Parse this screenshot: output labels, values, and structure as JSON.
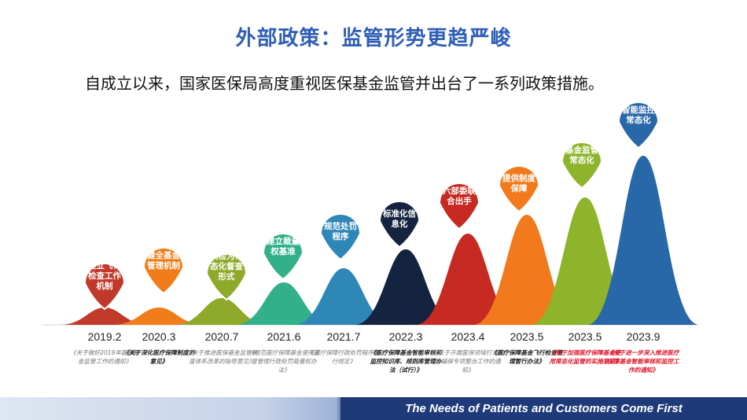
{
  "title": "外部政策：监管形势更趋严峻",
  "subtitle": "自成立以来，国家医保局高度重视医保基金监管并出台了一系列政策措施。",
  "footer": "The Needs of Patients and Customers Come First",
  "chart_data": {
    "type": "area",
    "series": [
      {
        "date": "2019.2",
        "measure": "建立飞行检查工作机制",
        "doc": "《关于做好2019年医保基金监管工作的通知》",
        "color": "#c0392b",
        "style": "grey",
        "level": 1
      },
      {
        "date": "2020.3",
        "measure": "健全基金管理机制",
        "doc": "《关于深化医疗保障制度的意见》",
        "color": "#f07d1a",
        "style": "bold",
        "level": 2
      },
      {
        "date": "2020.7",
        "measure": "飞检为常态化督查形式",
        "doc": "《关于推进医保基金监管制度体系改革的指导意见》",
        "color": "#8faa2a",
        "style": "grey",
        "level": 3
      },
      {
        "date": "2021.6",
        "measure": "建立裁量权基准",
        "doc": "《规范医疗保障基金使用监督管理行政处罚裁量权办法》",
        "color": "#32b08a",
        "style": "grey",
        "level": 4
      },
      {
        "date": "2021.7",
        "measure": "规范处罚程序",
        "doc": "《医疗保障行政处罚程序暂行规定》",
        "color": "#2f87b8",
        "style": "grey",
        "level": 5
      },
      {
        "date": "2022.3",
        "measure": "标准化信息化",
        "doc": "《医疗保障基金智能审核和监控知识库、规则库管理办法（试行）》",
        "color": "#14233f",
        "style": "bold",
        "level": 6
      },
      {
        "date": "2023.4",
        "measure": "六部委联合出手",
        "doc": "《关于开展医保领域打击欺诈骗保专项整治工作的通知》",
        "color": "#c62a22",
        "style": "grey",
        "level": 7
      },
      {
        "date": "2023.5",
        "measure": "提供制度保障",
        "doc": "《医疗保障基金飞行检查管理暂行办法》",
        "color": "#f2791c",
        "style": "bold",
        "level": 8
      },
      {
        "date": "2023.5",
        "measure": "基金监管常态化",
        "doc": "《关于加强医疗保障基金使用常态化监管的实施意见》",
        "color": "#8db42a",
        "style": "red",
        "level": 9
      },
      {
        "date": "2023.9",
        "measure": "智能监控常态化",
        "doc": "《关于进一步深入推进医疗保障基金智能审核和监控工作的通知》",
        "color": "#2868a8",
        "style": "red",
        "level": 10
      }
    ]
  }
}
